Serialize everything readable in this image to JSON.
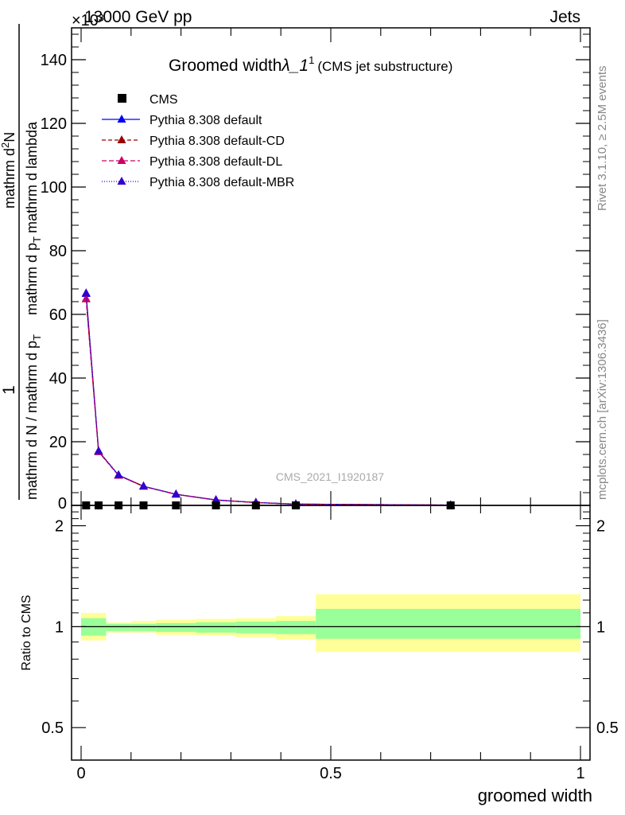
{
  "header": {
    "left": "13000 GeV pp",
    "right": "Jets",
    "exponent": "×10³"
  },
  "side": {
    "rivet": "Rivet 3.1.10, ≥ 2.5M events",
    "mcplots": "mcplots.cern.ch [arXiv:1306.3436]"
  },
  "watermark": "CMS_2021_I1920187",
  "chart_data": [
    {
      "type": "line",
      "title": "Groomed width",
      "title_symbol": "λ_1",
      "title_sup": "1",
      "title_note": "(CMS jet substructure)",
      "ylabel": "1 / mathrm d N / mathrm d p_T mathrm d^2N / mathrm d p_T mathrm d lambda",
      "ylabel_parts": {
        "one": "1",
        "den": "mathrm d N / mathrm d p",
        "sub": "T",
        "num": "mathrm d",
        "sup": "2",
        "num2": "N",
        "den2": "mathrm d p",
        "sub2": "T",
        "den2b": "mathrm d lambda"
      },
      "xlim": [
        0,
        1
      ],
      "ylim": [
        0,
        150000
      ],
      "yticks": [
        {
          "v": 20000,
          "label": "20"
        },
        {
          "v": 40000,
          "label": "40"
        },
        {
          "v": 60000,
          "label": "60"
        },
        {
          "v": 80000,
          "label": "80"
        },
        {
          "v": 100000,
          "label": "100"
        },
        {
          "v": 120000,
          "label": "120"
        },
        {
          "v": 140000,
          "label": "140"
        }
      ],
      "y_tick_label_zero": "0",
      "legend_position": "top-left",
      "cms": {
        "name": "CMS",
        "x": [
          0.01,
          0.035,
          0.075,
          0.125,
          0.19,
          0.27,
          0.35,
          0.43,
          0.74
        ],
        "y": [
          0,
          0,
          0,
          0,
          0,
          0,
          0,
          0,
          0
        ]
      },
      "series": [
        {
          "name": "Pythia 8.308 default",
          "color": "#0000ff",
          "dash": "",
          "x": [
            0.01,
            0.035,
            0.075,
            0.125,
            0.19,
            0.27,
            0.35,
            0.43,
            0.74
          ],
          "y": [
            66500,
            17000,
            9500,
            6000,
            3500,
            1700,
            900,
            400,
            100
          ]
        },
        {
          "name": "Pythia 8.308 default-CD",
          "color": "#990000",
          "dash": "5,3",
          "x": [
            0.01,
            0.035,
            0.075,
            0.125,
            0.19,
            0.27,
            0.35,
            0.43,
            0.74
          ],
          "y": [
            64800,
            16800,
            9400,
            5950,
            3450,
            1680,
            890,
            395,
            100
          ]
        },
        {
          "name": "Pythia 8.308 default-DL",
          "color": "#cc0066",
          "dash": "6,3",
          "x": [
            0.01,
            0.035,
            0.075,
            0.125,
            0.19,
            0.27,
            0.35,
            0.43,
            0.74
          ],
          "y": [
            64900,
            16850,
            9420,
            5960,
            3460,
            1690,
            895,
            398,
            100
          ]
        },
        {
          "name": "Pythia 8.308 default-MBR",
          "color": "#3300cc",
          "dash": "1,2",
          "x": [
            0.01,
            0.035,
            0.075,
            0.125,
            0.19,
            0.27,
            0.35,
            0.43,
            0.74
          ],
          "y": [
            66700,
            17100,
            9550,
            6020,
            3510,
            1710,
            905,
            402,
            100
          ]
        }
      ]
    },
    {
      "type": "area",
      "ylabel": "Ratio to CMS",
      "xlabel": "groomed width",
      "xlim": [
        0,
        1
      ],
      "ylim": [
        0.4,
        2.3
      ],
      "yticks": [
        {
          "v": 0.5,
          "label": "0.5"
        },
        {
          "v": 1,
          "label": "1"
        },
        {
          "v": 2,
          "label": "2"
        }
      ],
      "xticks": [
        {
          "v": 0,
          "label": "0"
        },
        {
          "v": 0.5,
          "label": "0.5"
        },
        {
          "v": 1,
          "label": "1"
        }
      ],
      "bins": [
        {
          "x0": 0.0,
          "x1": 0.05,
          "stat_lo": 0.94,
          "stat_hi": 1.06,
          "tot_lo": 0.91,
          "tot_hi": 1.1
        },
        {
          "x0": 0.05,
          "x1": 0.1,
          "stat_lo": 0.97,
          "stat_hi": 1.02,
          "tot_lo": 0.96,
          "tot_hi": 1.03
        },
        {
          "x0": 0.1,
          "x1": 0.15,
          "stat_lo": 0.97,
          "stat_hi": 1.02,
          "tot_lo": 0.96,
          "tot_hi": 1.04
        },
        {
          "x0": 0.15,
          "x1": 0.23,
          "stat_lo": 0.965,
          "stat_hi": 1.025,
          "tot_lo": 0.945,
          "tot_hi": 1.05
        },
        {
          "x0": 0.23,
          "x1": 0.31,
          "stat_lo": 0.96,
          "stat_hi": 1.03,
          "tot_lo": 0.94,
          "tot_hi": 1.055
        },
        {
          "x0": 0.31,
          "x1": 0.39,
          "stat_lo": 0.955,
          "stat_hi": 1.035,
          "tot_lo": 0.93,
          "tot_hi": 1.06
        },
        {
          "x0": 0.39,
          "x1": 0.47,
          "stat_lo": 0.95,
          "stat_hi": 1.04,
          "tot_lo": 0.915,
          "tot_hi": 1.075
        },
        {
          "x0": 0.47,
          "x1": 1.0,
          "stat_lo": 0.92,
          "stat_hi": 1.13,
          "tot_lo": 0.84,
          "tot_hi": 1.25
        }
      ],
      "colors": {
        "stat": "#99ff99",
        "tot": "#ffff99",
        "line": "#000000"
      }
    }
  ]
}
